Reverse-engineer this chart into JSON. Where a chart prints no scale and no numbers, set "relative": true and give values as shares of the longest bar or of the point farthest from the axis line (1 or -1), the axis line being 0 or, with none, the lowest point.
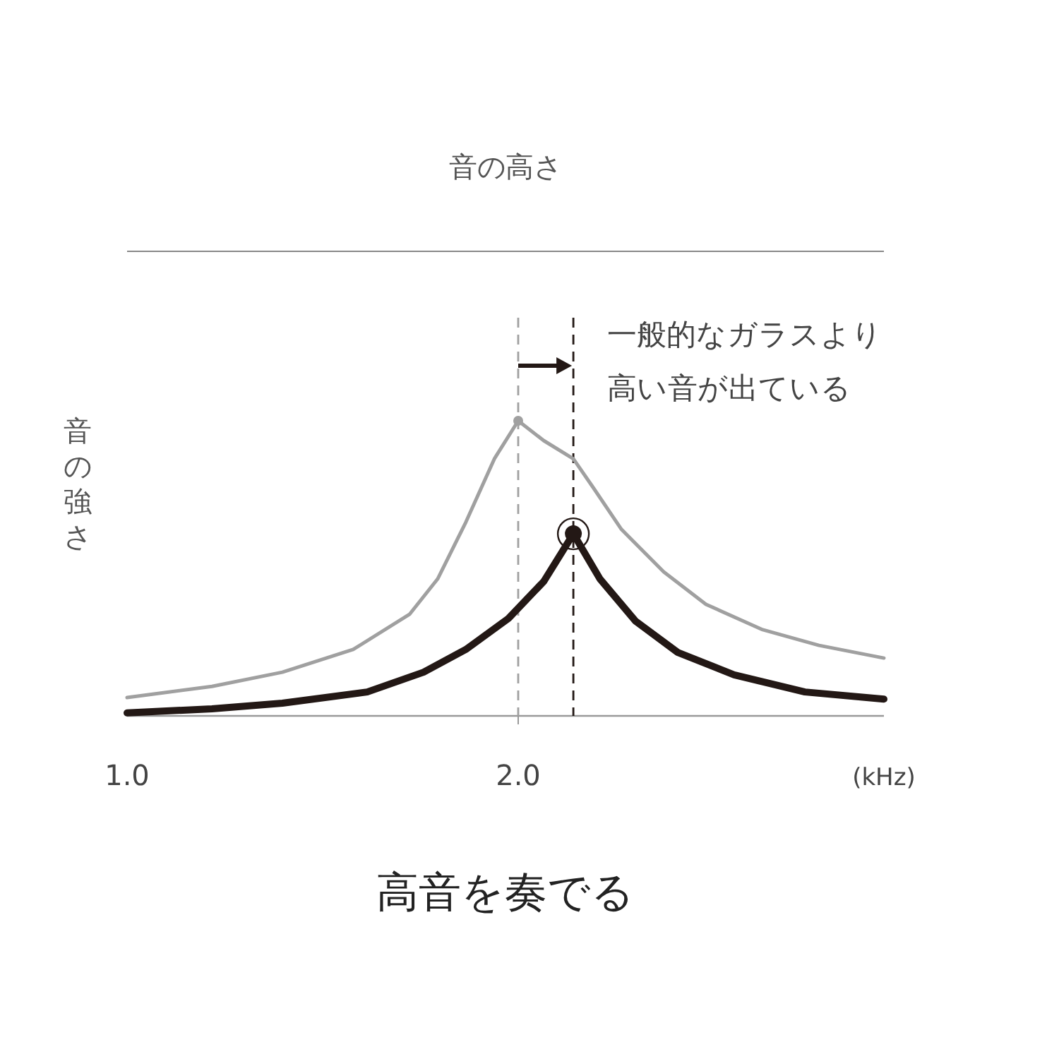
{
  "chart_data": {
    "type": "line",
    "title": "高音を奏でる",
    "subtitle": "音の高さ",
    "xlabel": "(kHz)",
    "ylabel": "音の強さ",
    "relative": true,
    "tick_labels": "x",
    "xlim": [
      1.0,
      2.935
    ],
    "xticks": [
      {
        "value": 1.0,
        "label": "1.0"
      },
      {
        "value": 2.0,
        "label": "2.0"
      }
    ],
    "series": [
      {
        "color": "#a0a0a0",
        "x": [
          1.0,
          1.217,
          1.397,
          1.578,
          1.722,
          1.794,
          1.866,
          1.939,
          2.0,
          2.065,
          2.141,
          2.191,
          2.264,
          2.372,
          2.48,
          2.625,
          2.769,
          2.935
        ],
        "values": [
          0.062,
          0.1,
          0.148,
          0.225,
          0.344,
          0.464,
          0.656,
          0.871,
          1,
          0.933,
          0.871,
          0.775,
          0.632,
          0.488,
          0.378,
          0.292,
          0.239,
          0.196
        ]
      },
      {
        "color": "#231815",
        "x": [
          1.0,
          1.217,
          1.397,
          1.614,
          1.758,
          1.866,
          1.975,
          2.065,
          2.141,
          2.209,
          2.3,
          2.408,
          2.552,
          2.733,
          2.935
        ],
        "values": [
          0.01,
          0.024,
          0.043,
          0.081,
          0.148,
          0.225,
          0.33,
          0.455,
          0.617,
          0.464,
          0.321,
          0.215,
          0.139,
          0.081,
          0.057
        ]
      },
      {
        "type": "scatter",
        "color": "#a0a0a0",
        "x": [
          2.0
        ],
        "values": [
          1
        ]
      },
      {
        "type": "scatter",
        "color": "#231815",
        "x": [
          2.141
        ],
        "values": [
          0.617
        ]
      }
    ],
    "ref_lines": [
      {
        "axis": "x",
        "value": 2.0,
        "color": "#a0a0a0",
        "line_style": "dashed"
      },
      {
        "axis": "x",
        "value": 2.141,
        "color": "#231815",
        "line_style": "dashed"
      }
    ],
    "annotations": [
      "一般的なガラスより高い音が出ている"
    ]
  }
}
